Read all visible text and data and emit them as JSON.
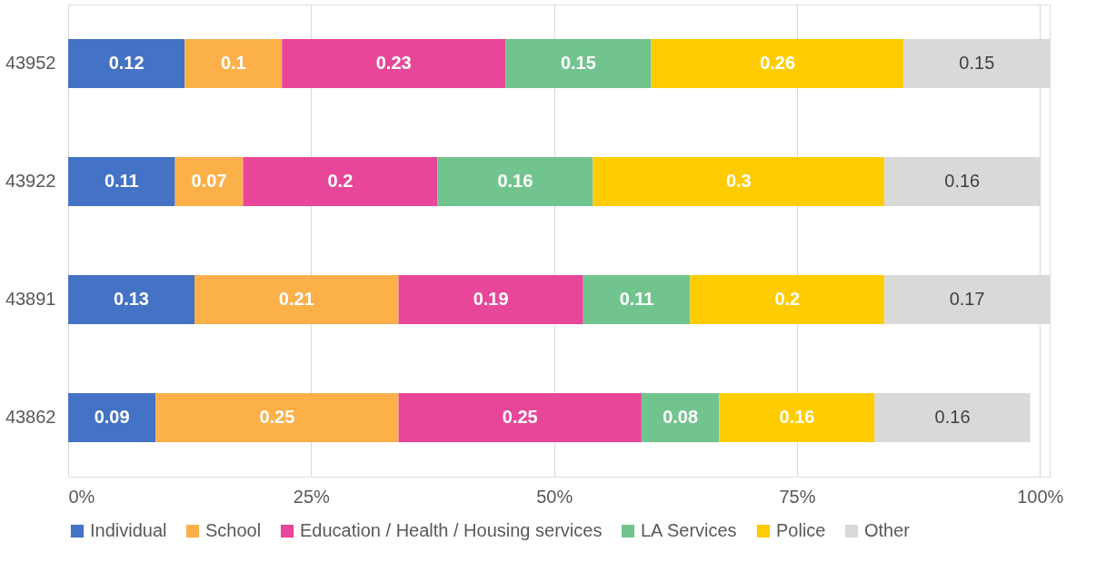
{
  "chart_data": {
    "type": "bar",
    "orientation": "horizontal",
    "stacked": true,
    "categories": [
      "43952",
      "43922",
      "43891",
      "43862"
    ],
    "series": [
      {
        "name": "Individual",
        "color": "#4472c4",
        "values": [
          0.12,
          0.11,
          0.13,
          0.09
        ]
      },
      {
        "name": "School",
        "color": "#fbb04a",
        "values": [
          0.1,
          0.07,
          0.21,
          0.25
        ]
      },
      {
        "name": "Education / Health / Housing services",
        "color": "#e84698",
        "values": [
          0.23,
          0.2,
          0.19,
          0.25
        ]
      },
      {
        "name": "LA Services",
        "color": "#72c48e",
        "values": [
          0.15,
          0.16,
          0.11,
          0.08
        ]
      },
      {
        "name": "Police",
        "color": "#ffcc00",
        "values": [
          0.26,
          0.3,
          0.2,
          0.16
        ]
      },
      {
        "name": "Other",
        "color": "#d9d9d9",
        "values": [
          0.15,
          0.16,
          0.17,
          0.16
        ]
      }
    ],
    "xlim": [
      0,
      1.01
    ],
    "xticks": [
      {
        "value": 0,
        "label": "0%"
      },
      {
        "value": 0.25,
        "label": "25%"
      },
      {
        "value": 0.5,
        "label": "50%"
      },
      {
        "value": 0.75,
        "label": "75%"
      },
      {
        "value": 1,
        "label": "100%"
      }
    ],
    "grid": "x",
    "legend": "bottom",
    "data_labels": true
  }
}
